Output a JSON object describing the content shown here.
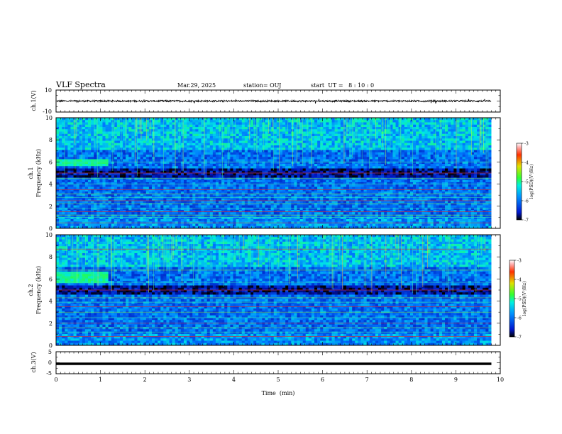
{
  "header": {
    "title": "VLF Spectra",
    "date": "Mar.29, 2025",
    "station": "station= OUJ",
    "start_ut": "start  UT =   8 : 10 : 0"
  },
  "chart_data": [
    {
      "type": "line",
      "panel": "ch1-waveform",
      "ylabel": "ch.1(V)",
      "ylim": [
        -10,
        10
      ],
      "yticks": [
        "10",
        "-10"
      ],
      "xlim": [
        0,
        10
      ],
      "series": [
        {
          "values_note_none": null
        }
      ],
      "trace_level": 0,
      "trace_end_min": 9.8,
      "color": "#000000"
    },
    {
      "type": "heatmap",
      "panel": "ch1-spectrogram",
      "ylabel": "ch.1\nFrequency (kHz)",
      "ylabel_lines": [
        "ch.1",
        "Frequency (kHz)"
      ],
      "ylim": [
        0,
        10
      ],
      "yticks": [
        "0",
        "2",
        "4",
        "6",
        "8",
        "10"
      ],
      "xlim": [
        0,
        10
      ],
      "data_end_min": 9.8,
      "colorbar": {
        "label": "log(PSD)(V²/Hz)",
        "range": [
          -7,
          -3
        ],
        "ticks": [
          "-3",
          "-4",
          "-5",
          "-6",
          "-7"
        ]
      },
      "features": {
        "bands_khz": [
          0.5,
          1.0,
          1.2,
          1.5,
          1.8,
          2.2,
          2.5,
          2.8,
          3.1,
          3.5,
          4.0,
          4.5,
          5.0,
          6.0
        ],
        "bright_low_region_khz": [
          5.6,
          6.3
        ],
        "bright_low_region_min": [
          0,
          1.2
        ],
        "sferics": true
      }
    },
    {
      "type": "heatmap",
      "panel": "ch2-spectrogram",
      "ylabel_lines": [
        "ch.2",
        "Frequency (kHz)"
      ],
      "ylim": [
        0,
        10
      ],
      "yticks": [
        "0",
        "2",
        "4",
        "6",
        "8",
        "10"
      ],
      "xlim": [
        0,
        10
      ],
      "data_end_min": 9.8,
      "colorbar": {
        "label": "log(PSD)(V²/Hz)",
        "range": [
          -7,
          -3
        ],
        "ticks": [
          "-3",
          "-4",
          "-5",
          "-6",
          "-7"
        ]
      },
      "features": {
        "bands_khz": [
          0.8,
          1.2,
          1.6,
          2.0,
          2.5,
          3.0,
          3.5,
          3.9,
          4.3,
          5.0,
          5.7,
          6.8,
          8.7
        ],
        "bright_low_region_khz": [
          5.6,
          6.6
        ],
        "bright_low_region_min": [
          0,
          1.2
        ],
        "sferics": true
      }
    },
    {
      "type": "line",
      "panel": "ch3-waveform",
      "ylabel": "ch.3(V)",
      "ylim": [
        -5,
        5
      ],
      "yticks": [
        "5",
        "0",
        "-5"
      ],
      "xlim": [
        0,
        10
      ],
      "trace_level": -0.5,
      "trace_end_min": 9.8,
      "color": "#000000",
      "xlabel": "Time  (min)",
      "xticks": [
        "0",
        "1",
        "2",
        "3",
        "4",
        "5",
        "6",
        "7",
        "8",
        "9",
        "10"
      ]
    }
  ]
}
